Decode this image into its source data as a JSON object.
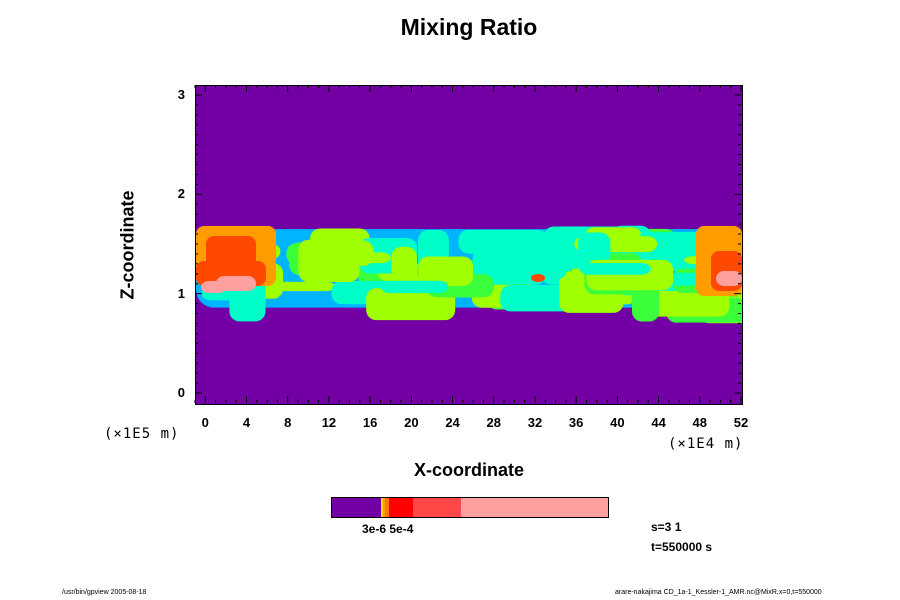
{
  "chart_data": {
    "type": "heatmap",
    "title": "Mixing Ratio",
    "xlabel": "X-coordinate",
    "ylabel": "Z-coordinate",
    "x_scale_label": "(×1E4 m)",
    "y_scale_label": "(×1E5 m)",
    "xlim": [
      -1,
      52
    ],
    "ylim": [
      -0.1,
      3.1
    ],
    "x_ticks": [
      "0",
      "4",
      "8",
      "12",
      "16",
      "20",
      "24",
      "28",
      "32",
      "36",
      "40",
      "44",
      "48",
      "52"
    ],
    "y_ticks": [
      "0",
      "1",
      "2",
      "3"
    ],
    "x_tick_values": [
      0,
      4,
      8,
      12,
      16,
      20,
      24,
      28,
      32,
      36,
      40,
      44,
      48,
      52
    ],
    "y_tick_values": [
      0,
      1,
      2,
      3
    ],
    "background_color": "#7300a4",
    "colorbar": {
      "label": "3e-6 5e-4",
      "segments": [
        {
          "color": "#7300a4",
          "weight": 46
        },
        {
          "color": "#ffd000",
          "weight": 2
        },
        {
          "color": "#ff9c00",
          "weight": 2
        },
        {
          "color": "#ff7a00",
          "weight": 4
        },
        {
          "color": "#ff0000",
          "weight": 22
        },
        {
          "color": "#ff4848",
          "weight": 46
        },
        {
          "color": "#ffa0a0",
          "weight": 138
        }
      ]
    },
    "layer": {
      "z_range": [
        0.85,
        1.7
      ],
      "colors": [
        "#00b4ff",
        "#00ffc8",
        "#3cff3c",
        "#a0ff00",
        "#ffff00",
        "#ff9c00",
        "#ff4800",
        "#ffa0a0"
      ]
    }
  },
  "step_text": "s=3 1",
  "time_text": "t=550000 s",
  "footer_left": "/usr/bin/gpview 2005-08-18",
  "footer_right": "arare-nakajima CD_1a-1_Kessler-1_AMR.nc@MixR,x=0,t=550000"
}
